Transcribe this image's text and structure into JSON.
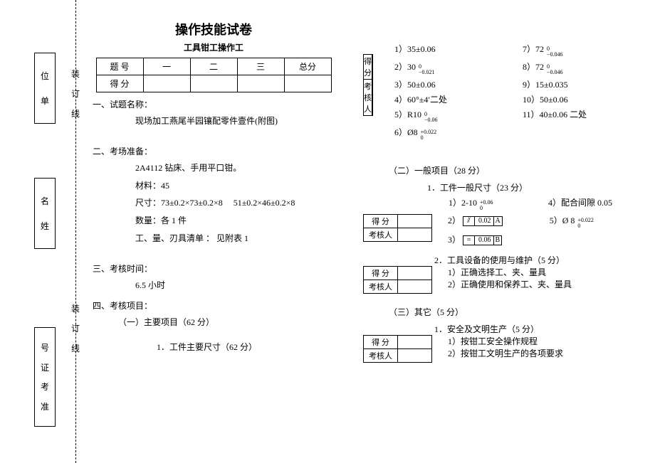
{
  "binding": {
    "vbox_unit": [
      "位",
      "单"
    ],
    "vbox_name": [
      "名",
      "姓"
    ],
    "vbox_id": [
      "号",
      "证",
      "考",
      "准"
    ],
    "fold_top": [
      "装",
      "订",
      "线"
    ],
    "fold_mid": [
      "装",
      "订",
      "线"
    ]
  },
  "header": {
    "title": "操作技能试卷",
    "subtitle": "工具钳工操作工",
    "table_cols": [
      "题 号",
      "一",
      "二",
      "三",
      "总分"
    ],
    "table_row2": "得 分"
  },
  "left": {
    "s1_label": "一、试题名称：",
    "s1_body": "现场加工燕尾半园镶配零件壹件(附图)",
    "s2_label": "二、考场准备：",
    "s2_l1": "2A4112 钻床、手用平口钳。",
    "s2_l2": "材料：45",
    "s2_l3": "尺寸：73±0.2×73±0.2×8  51±0.2×46±0.2×8",
    "s2_l4": "数量：各 1 件",
    "s2_l5": "工、量、刃具清单 ： 见附表 1",
    "s3_label": "三、考核时间：",
    "s3_body": "6.5 小时",
    "s4_label": "四、考核项目：",
    "s4_sub1": "（一）主要项目（62 分）",
    "s4_sub1_1": "1．工件主要尺寸（62 分）"
  },
  "mini_table": {
    "r1": "得 分",
    "r2": "考核人"
  },
  "dims_main": [
    {
      "a": "1）35±0.06",
      "b": "7）72 ",
      "b_sup": "0",
      "b_sub": "−0.046"
    },
    {
      "a": "2）30 ",
      "a_sup": "0",
      "a_sub": "−0.021",
      "b": "8）72 ",
      "b_sup": "0",
      "b_sub": "−0.046"
    },
    {
      "a": "3）50±0.06",
      "b": "9）15±0.035"
    },
    {
      "a": "4）60°±4′二处",
      "b": "10）50±0.06"
    },
    {
      "a": "5）R10 ",
      "a_sup": "0",
      "a_sub": "−0.06",
      "b": "11）40±0.06 二处"
    },
    {
      "a": "6）Ø8 ",
      "a_sup": "+0.022",
      "a_sub": "0",
      "b": ""
    }
  ],
  "right": {
    "s2_head": "（二）一般项目（28 分）",
    "s2_sub1": "1．工件一般尺寸（23 分）",
    "genrow1_a": "1）2-10 ",
    "genrow1_a_sup": "+0.06",
    "genrow1_a_sub": "0",
    "genrow1_b": "4）配合间隙 0.05",
    "genrow2_lead": "2）",
    "genrow2_sym": "⫽",
    "genrow2_val": "0.02",
    "genrow2_ref": "A",
    "genrow2_b": "5）Ø 8 ",
    "genrow2_b_sup": "+0.022",
    "genrow2_b_sub": "0",
    "genrow3_lead": "3）",
    "genrow3_sym": "=",
    "genrow3_val": "0.06",
    "genrow3_ref": "B",
    "s2_sub2": "2．工具设备的使用与维护（5 分）",
    "s2_sub2_1": "1）正确选择工、夹、量具",
    "s2_sub2_2": "2）正确使用和保养工、夹、量具",
    "s3_head": "（三）其它（5 分）",
    "s3_sub1": "1．安全及文明生产（5 分）",
    "s3_sub1_1": "1）按钳工安全操作规程",
    "s3_sub1_2": "2）按钳工文明生产的各项要求"
  }
}
